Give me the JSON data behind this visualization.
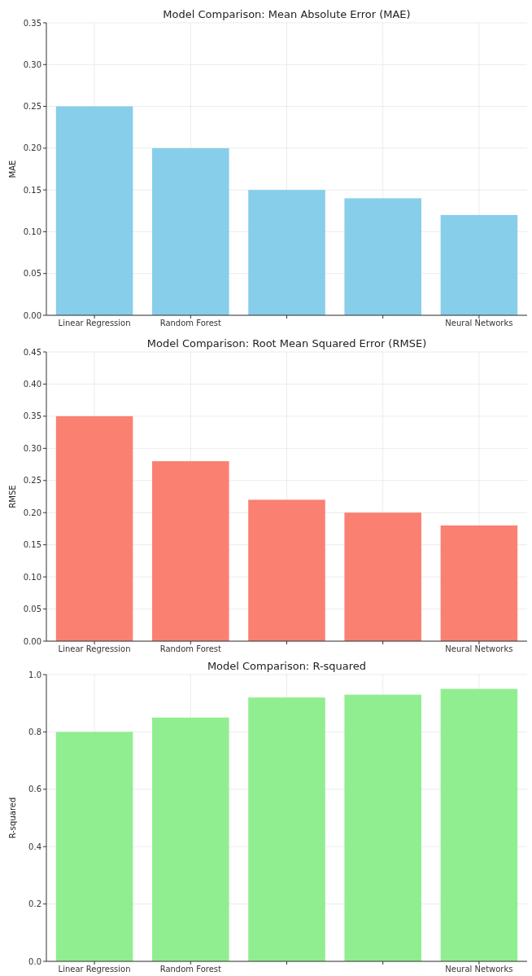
{
  "chart_data": [
    {
      "type": "bar",
      "title": "Model Comparison: Mean Absolute Error (MAE)",
      "ylabel": "MAE",
      "categories": [
        "Linear Regression",
        "Random Forest",
        null,
        null,
        "Neural Networks"
      ],
      "values": [
        0.25,
        0.2,
        0.15,
        0.14,
        0.12
      ],
      "color": "#87ceeb",
      "ylim": [
        0,
        0.35
      ],
      "yticks": [
        {
          "value": 0,
          "label": "0.00"
        },
        {
          "value": 0.05,
          "label": "0.05"
        },
        {
          "value": 0.1,
          "label": "0.10"
        },
        {
          "value": 0.15,
          "label": "0.15"
        },
        {
          "value": 0.2,
          "label": "0.20"
        },
        {
          "value": 0.25,
          "label": "0.25"
        },
        {
          "value": 0.3,
          "label": "0.30"
        },
        {
          "value": 0.35,
          "label": "0.35"
        }
      ],
      "grid": true
    },
    {
      "type": "bar",
      "title": "Model Comparison: Root Mean Squared Error (RMSE)",
      "ylabel": "RMSE",
      "categories": [
        "Linear Regression",
        "Random Forest",
        null,
        null,
        "Neural Networks"
      ],
      "values": [
        0.35,
        0.28,
        0.22,
        0.2,
        0.18
      ],
      "color": "#fa8072",
      "ylim": [
        0,
        0.45
      ],
      "yticks": [
        {
          "value": 0,
          "label": "0.00"
        },
        {
          "value": 0.05,
          "label": "0.05"
        },
        {
          "value": 0.1,
          "label": "0.10"
        },
        {
          "value": 0.15,
          "label": "0.15"
        },
        {
          "value": 0.2,
          "label": "0.20"
        },
        {
          "value": 0.25,
          "label": "0.25"
        },
        {
          "value": 0.3,
          "label": "0.30"
        },
        {
          "value": 0.35,
          "label": "0.35"
        },
        {
          "value": 0.4,
          "label": "0.40"
        },
        {
          "value": 0.45,
          "label": "0.45"
        }
      ],
      "grid": true
    },
    {
      "type": "bar",
      "title": "Model Comparison: R-squared",
      "ylabel": "R-squared",
      "categories": [
        "Linear Regression",
        "Random Forest",
        null,
        null,
        "Neural Networks"
      ],
      "values": [
        0.8,
        0.85,
        0.92,
        0.93,
        0.95
      ],
      "color": "#90ee90",
      "ylim": [
        0,
        1
      ],
      "yticks": [
        {
          "value": 0,
          "label": "0.0"
        },
        {
          "value": 0.2,
          "label": "0.2"
        },
        {
          "value": 0.4,
          "label": "0.4"
        },
        {
          "value": 0.6,
          "label": "0.6"
        },
        {
          "value": 0.8,
          "label": "0.8"
        },
        {
          "value": 1,
          "label": "1.0"
        }
      ],
      "grid": true
    }
  ]
}
